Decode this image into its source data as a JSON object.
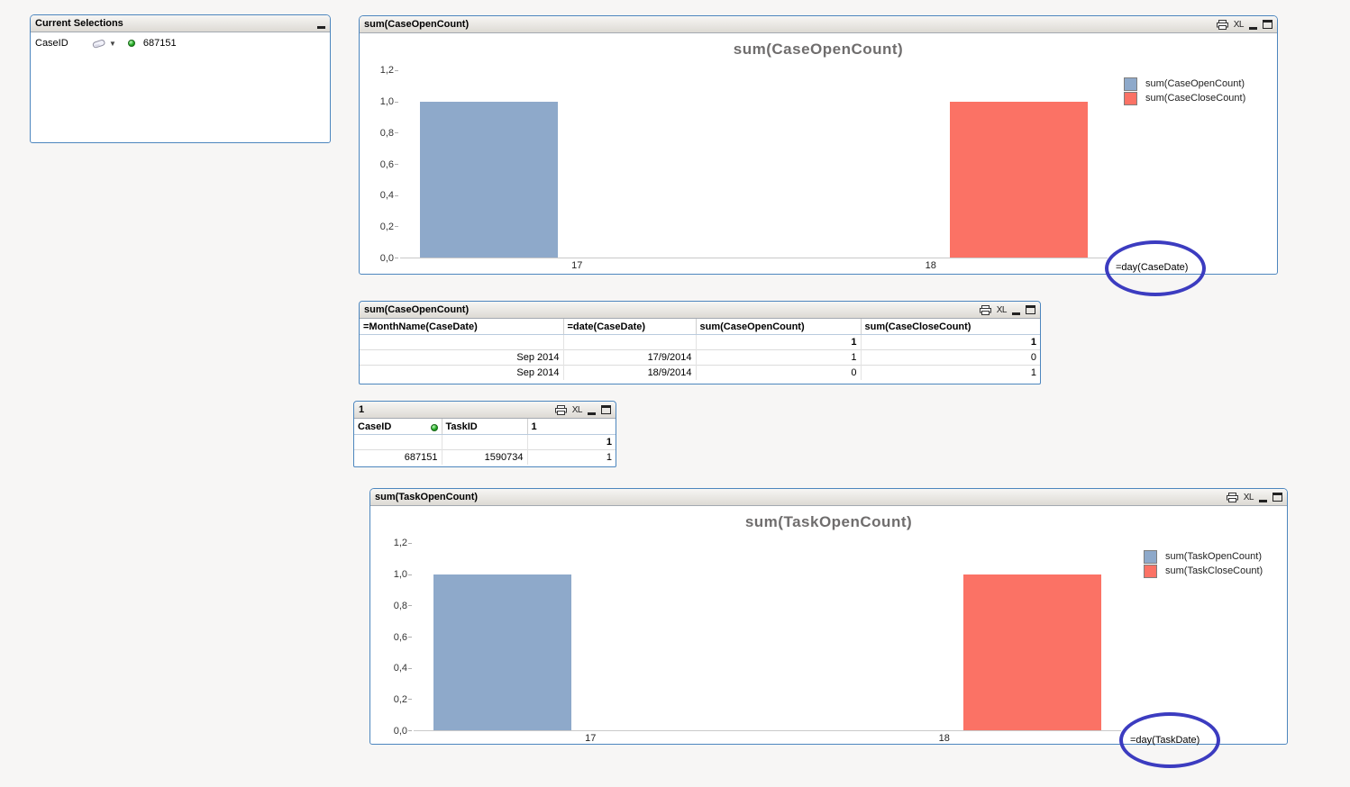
{
  "caption": {
    "xl": "XL"
  },
  "current_selections": {
    "title": "Current Selections",
    "field_label": "CaseID",
    "selected_value": "687151"
  },
  "chart_data": [
    {
      "type": "bar",
      "window_title": "sum(CaseOpenCount)",
      "title": "sum(CaseOpenCount)",
      "categories": [
        "17",
        "18"
      ],
      "series": [
        {
          "name": "sum(CaseOpenCount)",
          "color": "#8EA9CA",
          "values": [
            1,
            0
          ]
        },
        {
          "name": "sum(CaseCloseCount)",
          "color": "#FB7265",
          "values": [
            0,
            1
          ]
        }
      ],
      "xlabel": "=day(CaseDate)",
      "ylabel": "",
      "ylim": [
        0,
        1.2
      ],
      "ytick_step": 0.2,
      "decimal_separator": ",",
      "legend_position": "right-top",
      "grid": false
    },
    {
      "type": "bar",
      "window_title": "sum(TaskOpenCount)",
      "title": "sum(TaskOpenCount)",
      "categories": [
        "17",
        "18"
      ],
      "series": [
        {
          "name": "sum(TaskOpenCount)",
          "color": "#8EA9CA",
          "values": [
            1,
            0
          ]
        },
        {
          "name": "sum(TaskCloseCount)",
          "color": "#FB7265",
          "values": [
            0,
            1
          ]
        }
      ],
      "xlabel": "=day(TaskDate)",
      "ylabel": "",
      "ylim": [
        0,
        1.2
      ],
      "ytick_step": 0.2,
      "decimal_separator": ",",
      "legend_position": "right-top",
      "grid": false
    }
  ],
  "tables": {
    "pivot": {
      "window_title": "sum(CaseOpenCount)",
      "columns": [
        "=MonthName(CaseDate)",
        "=date(CaseDate)",
        "sum(CaseOpenCount)",
        "sum(CaseCloseCount)"
      ],
      "totals": [
        "",
        "",
        "1",
        "1"
      ],
      "rows": [
        [
          "Sep 2014",
          "17/9/2014",
          "1",
          "0"
        ],
        [
          "Sep 2014",
          "18/9/2014",
          "0",
          "1"
        ]
      ]
    },
    "mini": {
      "window_title": "1",
      "columns": [
        "CaseID",
        "TaskID",
        "1"
      ],
      "indicator_col": 0,
      "totals": [
        "",
        "",
        "1"
      ],
      "rows": [
        [
          "687151",
          "1590734",
          "1"
        ]
      ]
    }
  }
}
